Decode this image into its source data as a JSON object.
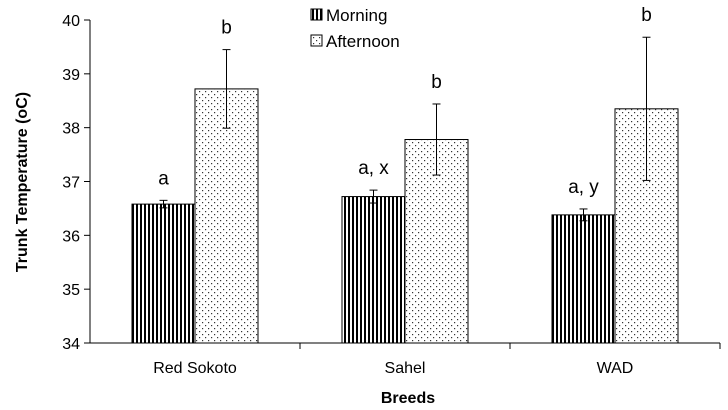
{
  "chart_data": {
    "type": "bar",
    "title": "",
    "xlabel": "Breeds",
    "ylabel": "Trunk Temperature (oC)",
    "ylim": [
      34,
      40
    ],
    "yticks": [
      "34",
      "35",
      "36",
      "37",
      "38",
      "39",
      "40"
    ],
    "categories": [
      "Red Sokoto",
      "Sahel",
      "WAD"
    ],
    "series": [
      {
        "name": "Morning",
        "pattern": "vertical-stripes",
        "values": [
          36.58,
          36.72,
          36.38
        ],
        "errors": [
          0.07,
          0.12,
          0.11
        ],
        "labels": [
          "a",
          "a, x",
          "a, y"
        ]
      },
      {
        "name": "Afternoon",
        "pattern": "dots",
        "values": [
          38.72,
          37.78,
          38.35
        ],
        "errors": [
          0.73,
          0.66,
          1.33
        ],
        "labels": [
          "b",
          "b",
          "b"
        ]
      }
    ],
    "legend": "top-center",
    "grid": false
  }
}
